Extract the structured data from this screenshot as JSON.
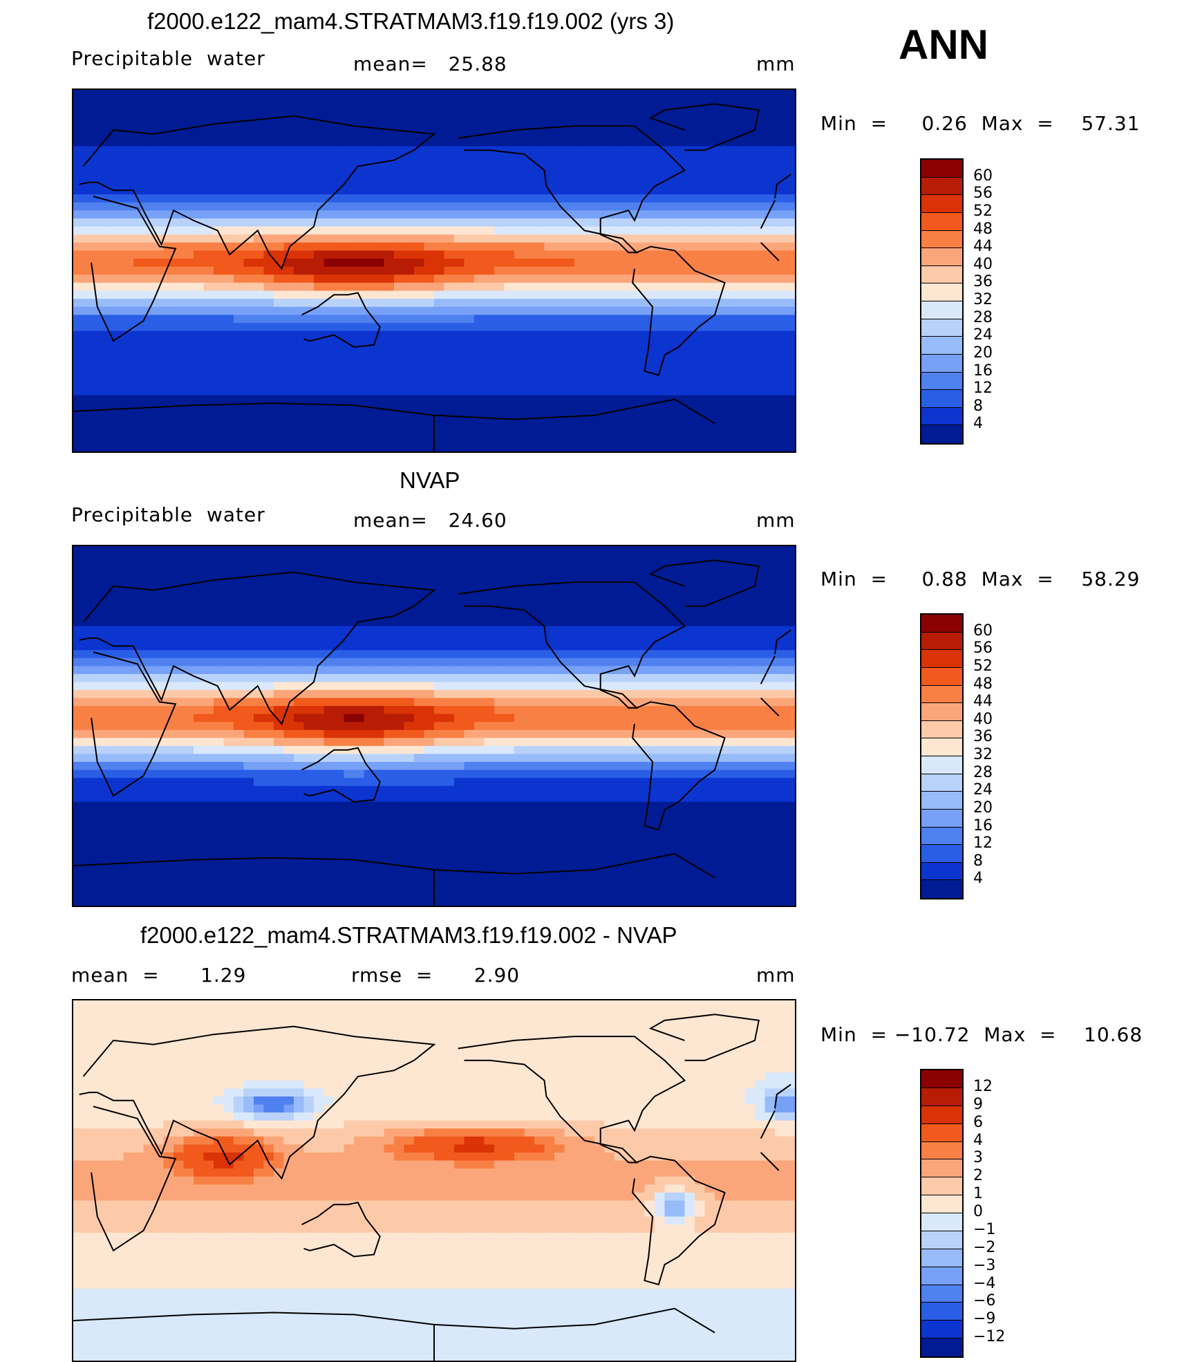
{
  "season": "ANN",
  "panels": [
    {
      "id": "model",
      "title": "f2000.e122_mam4.STRATMAM3.f19.f19.002 (yrs 3)",
      "left_label": "Precipitable  water",
      "center_label": "mean=   25.88",
      "units": "mm",
      "minmax": "Min  =     0.26  Max  =    57.31",
      "levels": [
        "60",
        "56",
        "52",
        "48",
        "44",
        "40",
        "36",
        "32",
        "28",
        "24",
        "20",
        "16",
        "12",
        "8",
        "4"
      ],
      "colors": [
        "#8b0000",
        "#b81c04",
        "#da3306",
        "#f15a1c",
        "#f98045",
        "#fba67a",
        "#fdcaa9",
        "#fde6d2",
        "#d9e8fb",
        "#b9d2fa",
        "#98bbf9",
        "#76a1f6",
        "#4f81ef",
        "#2a5ee6",
        "#0c34cf",
        "#001b94"
      ]
    },
    {
      "id": "obs",
      "title": "NVAP",
      "left_label": "Precipitable  water",
      "center_label": "mean=   24.60",
      "units": "mm",
      "minmax": "Min  =     0.88  Max  =    58.29",
      "levels": [
        "60",
        "56",
        "52",
        "48",
        "44",
        "40",
        "36",
        "32",
        "28",
        "24",
        "20",
        "16",
        "12",
        "8",
        "4"
      ],
      "colors": [
        "#8b0000",
        "#b81c04",
        "#da3306",
        "#f15a1c",
        "#f98045",
        "#fba67a",
        "#fdcaa9",
        "#fde6d2",
        "#d9e8fb",
        "#b9d2fa",
        "#98bbf9",
        "#76a1f6",
        "#4f81ef",
        "#2a5ee6",
        "#0c34cf",
        "#001b94"
      ]
    },
    {
      "id": "diff",
      "title": "f2000.e122_mam4.STRATMAM3.f19.f19.002 - NVAP",
      "left_label": "mean  =      1.29",
      "center_label": "rmse  =      2.90",
      "units": "mm",
      "minmax": "Min  = −10.72  Max  =    10.68",
      "levels": [
        "12",
        "9",
        "6",
        "4",
        "3",
        "2",
        "1",
        "0",
        "−1",
        "−2",
        "−3",
        "−4",
        "−6",
        "−9",
        "−12"
      ],
      "colors": [
        "#8b0000",
        "#b81c04",
        "#da3306",
        "#f15a1c",
        "#f98045",
        "#fba67a",
        "#fdcaa9",
        "#fde6d2",
        "#d9e8fb",
        "#b9d2fa",
        "#98bbf9",
        "#76a1f6",
        "#4f81ef",
        "#2a5ee6",
        "#0c34cf",
        "#001b94"
      ]
    }
  ]
}
